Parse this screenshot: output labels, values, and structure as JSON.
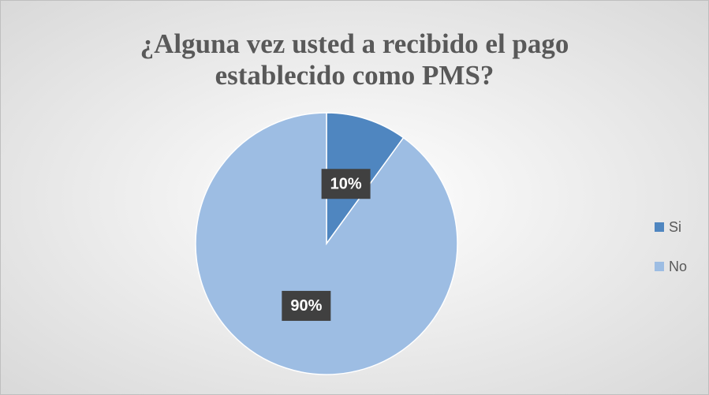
{
  "chart_data": {
    "type": "pie",
    "title": "¿Alguna vez usted a recibido el pago establecido como PMS?",
    "categories": [
      "Si",
      "No"
    ],
    "values": [
      10,
      90
    ],
    "value_labels": [
      "10%",
      "90%"
    ],
    "colors": [
      "#4f86c0",
      "#9dbde3"
    ],
    "legend": "right"
  }
}
